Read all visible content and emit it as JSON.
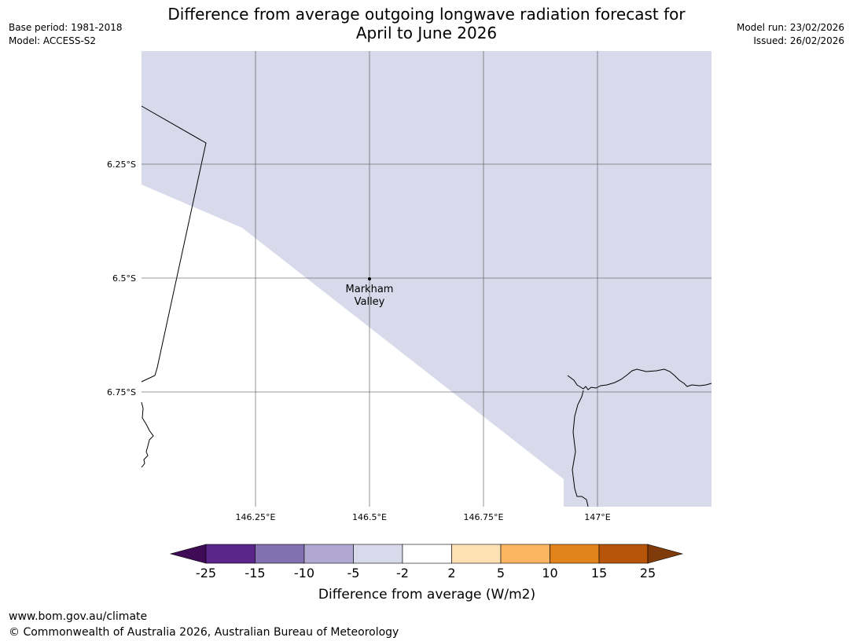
{
  "header": {
    "title_line1": "Difference from average outgoing longwave radiation forecast for",
    "title_line2": "April to June 2026",
    "base_period": "Base period: 1981-2018",
    "model": "Model: ACCESS-S2",
    "model_run": "Model run: 23/02/2026",
    "issued": "Issued: 26/02/2026"
  },
  "map": {
    "lon_ticks": [
      "146.25°E",
      "146.5°E",
      "146.75°E",
      "147°E"
    ],
    "lat_ticks": [
      "6.25°S",
      "6.5°S",
      "6.75°S"
    ],
    "place": {
      "name_line1": "Markham",
      "name_line2": "Valley"
    },
    "fill_color": "#d8d9ea"
  },
  "colorbar": {
    "label": "Difference from average (W/m2)",
    "ticks": [
      "-25",
      "-15",
      "-10",
      "-5",
      "-2",
      "2",
      "5",
      "10",
      "15",
      "25"
    ],
    "colors": [
      "#3f0a56",
      "#5a2689",
      "#8270b0",
      "#b0a8d0",
      "#d8d9ea",
      "#ffffff",
      "#fde0b4",
      "#fbb462",
      "#e2821b",
      "#b65509",
      "#7f3b0a"
    ]
  },
  "footer": {
    "url": "www.bom.gov.au/climate",
    "copyright": "© Commonwealth of Australia 2026, Australian Bureau of Meteorology"
  }
}
